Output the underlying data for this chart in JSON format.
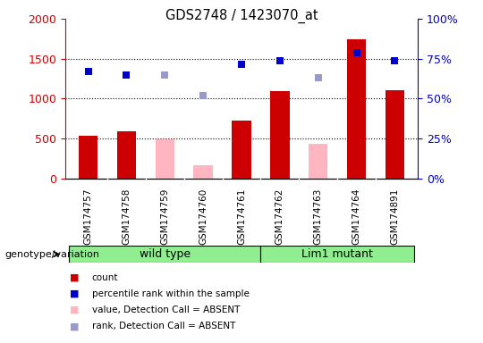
{
  "title": "GDS2748 / 1423070_at",
  "samples": [
    "GSM174757",
    "GSM174758",
    "GSM174759",
    "GSM174760",
    "GSM174761",
    "GSM174762",
    "GSM174763",
    "GSM174764",
    "GSM174891"
  ],
  "count_values": [
    530,
    590,
    null,
    null,
    730,
    1090,
    null,
    1740,
    1100
  ],
  "count_absent_values": [
    null,
    null,
    490,
    160,
    null,
    null,
    430,
    null,
    null
  ],
  "rank_values": [
    1340,
    1300,
    null,
    null,
    1430,
    1470,
    null,
    1580,
    1470
  ],
  "rank_absent_values": [
    null,
    null,
    1300,
    1040,
    null,
    null,
    1260,
    null,
    null
  ],
  "count_color": "#cc0000",
  "count_absent_color": "#ffb6c1",
  "rank_color": "#0000cc",
  "rank_absent_color": "#9999cc",
  "ylim_left": [
    0,
    2000
  ],
  "ylim_right": [
    0,
    100
  ],
  "left_yticks": [
    0,
    500,
    1000,
    1500,
    2000
  ],
  "right_yticks": [
    0,
    25,
    50,
    75,
    100
  ],
  "grid_values": [
    500,
    1000,
    1500
  ],
  "wild_type_indices": [
    0,
    1,
    2,
    3,
    4
  ],
  "lim1_mutant_indices": [
    5,
    6,
    7,
    8
  ],
  "wild_type_label": "wild type",
  "lim1_mutant_label": "Lim1 mutant",
  "group_color": "#90ee90",
  "genotype_label": "genotype/variation",
  "bar_width": 0.5,
  "xtick_bg": "#d3d3d3",
  "plot_bg": "#ffffff",
  "fig_bg": "#ffffff",
  "legend_items": [
    [
      "#cc0000",
      "count"
    ],
    [
      "#0000cc",
      "percentile rank within the sample"
    ],
    [
      "#ffb6c1",
      "value, Detection Call = ABSENT"
    ],
    [
      "#9999cc",
      "rank, Detection Call = ABSENT"
    ]
  ]
}
